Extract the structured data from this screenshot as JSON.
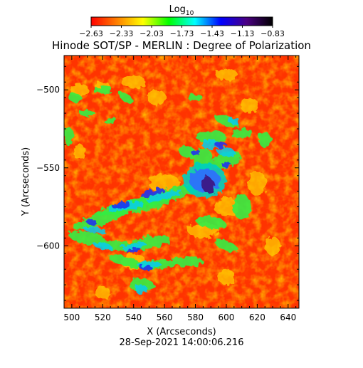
{
  "chart_data": {
    "type": "heatmap",
    "title": "Hinode SOT/SP - MERLIN : Degree of Polarization",
    "subtitle": "28-Sep-2021 14:00:06.216",
    "xlabel": "X (Arcseconds)",
    "ylabel": "Y (Arcseconds)",
    "xlim": [
      495,
      647
    ],
    "ylim": [
      -640,
      -478
    ],
    "xticks": [
      500,
      520,
      540,
      560,
      580,
      600,
      620,
      640
    ],
    "yticks": [
      -500,
      -550,
      -600
    ],
    "colorbar": {
      "label_main": "Log",
      "label_sub": "10",
      "range": [
        -2.63,
        -0.83
      ],
      "ticks": [
        "-2.63",
        "-2.33",
        "-2.03",
        "-1.73",
        "-1.43",
        "-1.13",
        "-0.83"
      ],
      "colormap": [
        "#ff0000",
        "#ff8000",
        "#ffff00",
        "#00ff00",
        "#00ffff",
        "#0000ff",
        "#4b0082",
        "#000000"
      ]
    },
    "grid": false,
    "features": [
      {
        "name": "sunspot_core",
        "x": 588,
        "y": -561,
        "rx": 4,
        "ry": 6,
        "level": -0.95
      },
      {
        "name": "penumbra",
        "x": 586,
        "y": -558,
        "rx": 14,
        "ry": 11,
        "level": -1.45
      }
    ]
  }
}
